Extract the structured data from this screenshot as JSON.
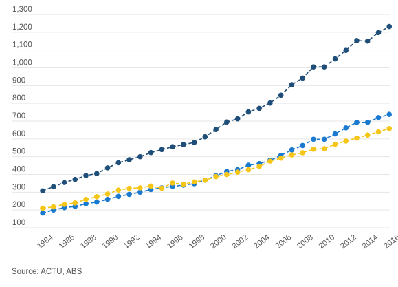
{
  "source": "Source: ACTU, ABS",
  "chart_data": {
    "type": "line",
    "title": "",
    "xlabel": "",
    "ylabel": "",
    "ylim": [
      100,
      1300
    ],
    "xlim": [
      1983,
      2016
    ],
    "y_ticks": [
      100,
      200,
      300,
      400,
      500,
      600,
      700,
      800,
      900,
      1000,
      1100,
      1200,
      1300
    ],
    "y_tick_labels": [
      "100",
      "200",
      "300",
      "400",
      "500",
      "600",
      "700",
      "800",
      "900",
      "1,000",
      "1,100",
      "1,200",
      "1,300"
    ],
    "x_ticks": [
      1984,
      1986,
      1988,
      1990,
      1992,
      1994,
      1996,
      1998,
      2000,
      2002,
      2004,
      2006,
      2008,
      2010,
      2012,
      2014,
      2016
    ],
    "x_tick_labels": [
      "1984",
      "1986",
      "1988",
      "1990",
      "1992",
      "1994",
      "1996",
      "1998",
      "2000",
      "2002",
      "2004",
      "2006",
      "2008",
      "2010",
      "2012",
      "2014",
      "2016"
    ],
    "grid": true,
    "x": [
      1983,
      1984,
      1985,
      1986,
      1987,
      1988,
      1989,
      1990,
      1991,
      1992,
      1993,
      1994,
      1995,
      1996,
      1997,
      1998,
      1999,
      2000,
      2001,
      2002,
      2003,
      2004,
      2005,
      2006,
      2007,
      2008,
      2009,
      2010,
      2011,
      2012,
      2013,
      2014,
      2015
    ],
    "series": [
      {
        "color": "#1f4e79",
        "values": [
          308,
          331,
          355,
          372,
          394,
          405,
          437,
          466,
          483,
          500,
          523,
          540,
          556,
          568,
          580,
          612,
          653,
          695,
          713,
          752,
          772,
          802,
          846,
          905,
          942,
          1005,
          1005,
          1050,
          1098,
          1153,
          1150,
          1198,
          1232
        ]
      },
      {
        "color": "#1a7ad0",
        "values": [
          183,
          200,
          213,
          220,
          235,
          245,
          260,
          277,
          288,
          300,
          315,
          325,
          333,
          340,
          348,
          368,
          393,
          417,
          427,
          452,
          461,
          480,
          507,
          538,
          563,
          598,
          598,
          628,
          662,
          693,
          693,
          720,
          738
        ]
      },
      {
        "color": "#f5c518",
        "values": [
          210,
          218,
          232,
          240,
          260,
          275,
          290,
          312,
          322,
          325,
          335,
          323,
          352,
          345,
          358,
          368,
          388,
          400,
          413,
          427,
          445,
          475,
          492,
          510,
          522,
          542,
          545,
          570,
          588,
          605,
          622,
          640,
          658
        ]
      }
    ]
  }
}
